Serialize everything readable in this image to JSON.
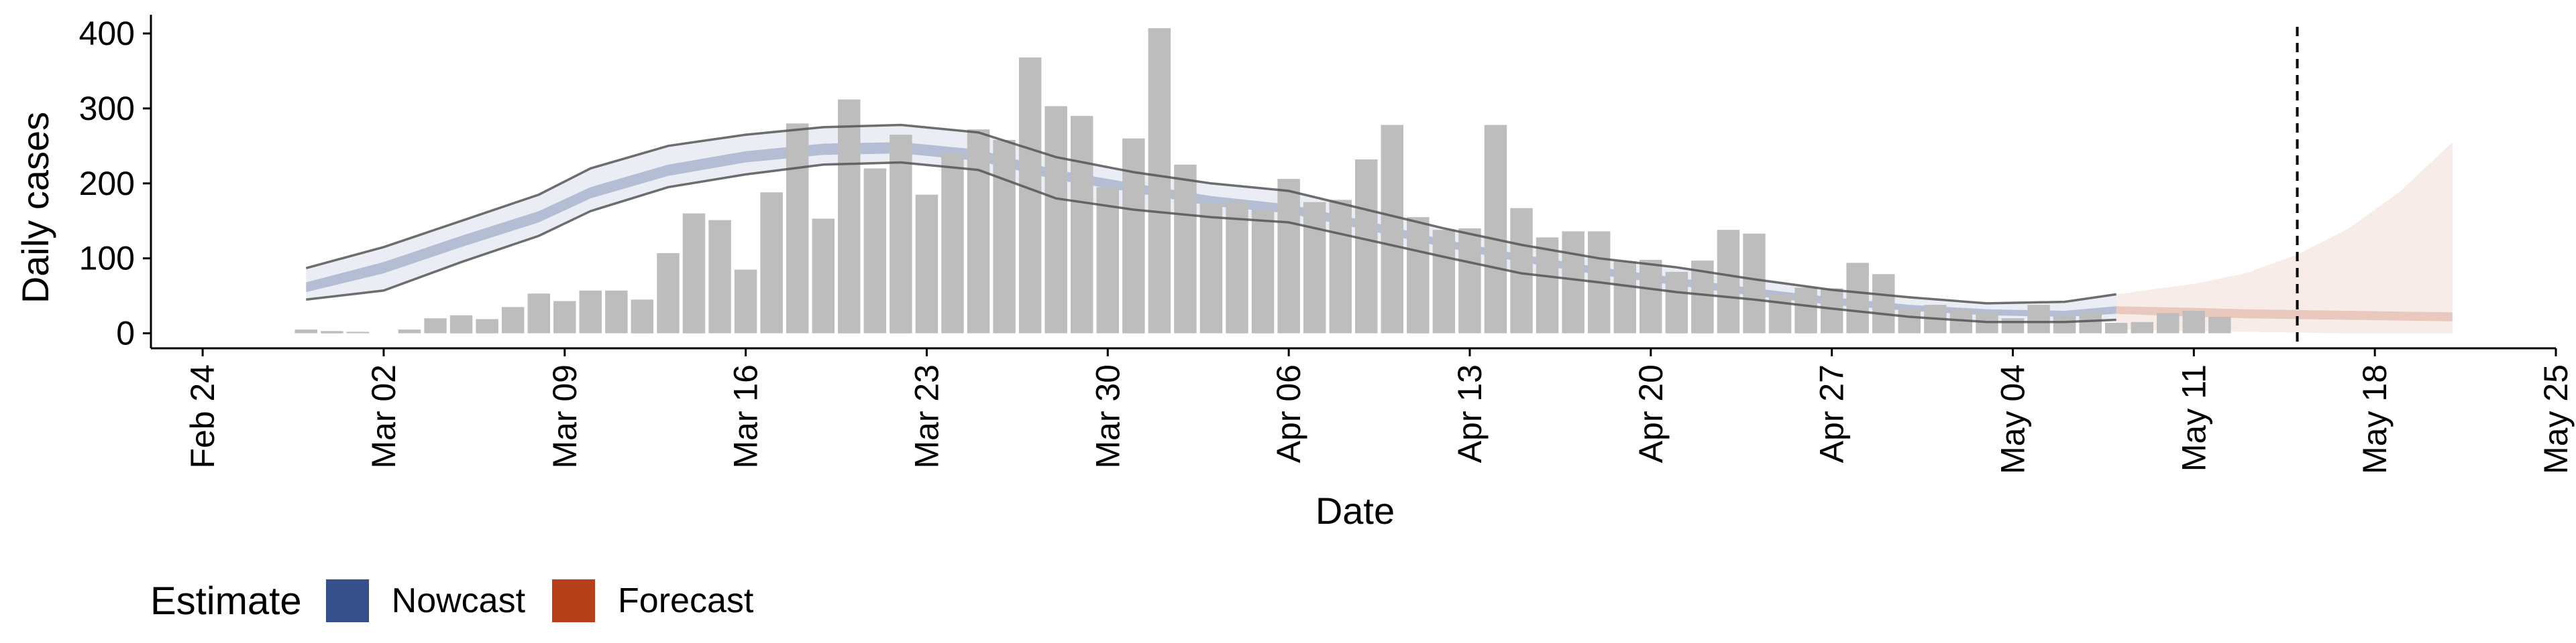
{
  "chart_data": {
    "type": "bar",
    "title": "",
    "xlabel": "Date",
    "ylabel": "Daily cases",
    "ylim": [
      -20,
      425
    ],
    "yticks": [
      0,
      100,
      200,
      300,
      400
    ],
    "xlim": [
      "2020-02-22",
      "2020-05-25"
    ],
    "xticks": [
      {
        "date": "2020-02-24",
        "label": "Feb 24"
      },
      {
        "date": "2020-03-02",
        "label": "Mar 02"
      },
      {
        "date": "2020-03-09",
        "label": "Mar 09"
      },
      {
        "date": "2020-03-16",
        "label": "Mar 16"
      },
      {
        "date": "2020-03-23",
        "label": "Mar 23"
      },
      {
        "date": "2020-03-30",
        "label": "Mar 30"
      },
      {
        "date": "2020-04-06",
        "label": "Apr 06"
      },
      {
        "date": "2020-04-13",
        "label": "Apr 13"
      },
      {
        "date": "2020-04-20",
        "label": "Apr 20"
      },
      {
        "date": "2020-04-27",
        "label": "Apr 27"
      },
      {
        "date": "2020-05-04",
        "label": "May 04"
      },
      {
        "date": "2020-05-11",
        "label": "May 11"
      },
      {
        "date": "2020-05-18",
        "label": "May 18"
      },
      {
        "date": "2020-05-25",
        "label": "May 25"
      }
    ],
    "grid": false,
    "legend_position": "bottom-left",
    "legend_title": "Estimate",
    "legend_entries": [
      {
        "label": "Nowcast",
        "color": "#35508a"
      },
      {
        "label": "Forecast",
        "color": "#b5401a"
      }
    ],
    "vline": {
      "date": "2020-05-15",
      "style": "dashed"
    },
    "bars": {
      "start_date": "2020-02-28",
      "color": "#bdbdbd",
      "values": [
        5,
        3,
        2,
        0,
        5,
        20,
        24,
        19,
        35,
        53,
        43,
        57,
        57,
        45,
        107,
        160,
        151,
        85,
        188,
        280,
        153,
        312,
        220,
        265,
        185,
        240,
        272,
        258,
        368,
        303,
        290,
        195,
        260,
        407,
        225,
        173,
        176,
        165,
        206,
        175,
        178,
        232,
        278,
        155,
        138,
        140,
        278,
        167,
        128,
        136,
        136,
        96,
        98,
        82,
        97,
        138,
        133,
        52,
        61,
        60,
        94,
        79,
        33,
        38,
        32,
        28,
        20,
        38,
        24,
        28,
        14,
        15,
        27,
        30,
        22
      ]
    },
    "series": [
      {
        "name": "Nowcast",
        "color": "#35508a",
        "x": [
          "2020-02-28",
          "2020-03-02",
          "2020-03-05",
          "2020-03-08",
          "2020-03-10",
          "2020-03-13",
          "2020-03-16",
          "2020-03-19",
          "2020-03-22",
          "2020-03-25",
          "2020-03-28",
          "2020-03-31",
          "2020-04-03",
          "2020-04-06",
          "2020-04-09",
          "2020-04-12",
          "2020-04-15",
          "2020-04-18",
          "2020-04-21",
          "2020-04-24",
          "2020-04-27",
          "2020-04-30",
          "2020-05-03",
          "2020-05-06",
          "2020-05-08"
        ],
        "outer_upper": [
          87,
          115,
          150,
          185,
          220,
          250,
          265,
          275,
          278,
          268,
          235,
          215,
          200,
          190,
          165,
          140,
          118,
          100,
          88,
          72,
          58,
          48,
          40,
          42,
          52
        ],
        "inner_upper": [
          68,
          95,
          130,
          163,
          195,
          225,
          243,
          253,
          255,
          245,
          218,
          200,
          183,
          172,
          150,
          125,
          105,
          88,
          74,
          60,
          48,
          38,
          32,
          30,
          36
        ],
        "inner_lower": [
          55,
          80,
          115,
          148,
          180,
          210,
          228,
          238,
          240,
          230,
          205,
          188,
          170,
          160,
          138,
          115,
          95,
          78,
          64,
          50,
          38,
          30,
          24,
          22,
          26
        ],
        "outer_lower": [
          45,
          57,
          95,
          130,
          163,
          195,
          212,
          225,
          228,
          218,
          180,
          165,
          155,
          148,
          125,
          102,
          80,
          68,
          55,
          45,
          33,
          22,
          15,
          15,
          18
        ]
      },
      {
        "name": "Forecast",
        "color": "#b5401a",
        "x": [
          "2020-05-08",
          "2020-05-11",
          "2020-05-13",
          "2020-05-15",
          "2020-05-17",
          "2020-05-19",
          "2020-05-21"
        ],
        "outer_upper": [
          52,
          66,
          80,
          105,
          140,
          190,
          255
        ],
        "inner_upper": [
          36,
          34,
          32,
          31,
          30,
          29,
          28
        ],
        "inner_lower": [
          26,
          22,
          20,
          19,
          18,
          17,
          16
        ],
        "outer_lower": [
          5,
          3,
          2,
          1,
          0,
          0,
          0
        ]
      }
    ]
  }
}
